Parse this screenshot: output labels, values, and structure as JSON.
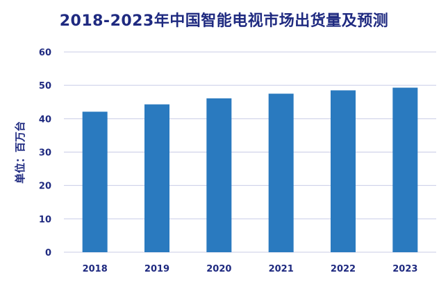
{
  "chart_data": {
    "type": "bar",
    "title": "2018-2023年中国智能电视市场出货量及预测",
    "ylabel": "单位：百万台",
    "xlabel": "",
    "categories": [
      "2018",
      "2019",
      "2020",
      "2021",
      "2022",
      "2023"
    ],
    "values": [
      42.1,
      44.3,
      46.1,
      47.5,
      48.5,
      49.3
    ],
    "ylim": [
      0,
      60
    ],
    "yticks": [
      0,
      10,
      20,
      30,
      40,
      50,
      60
    ],
    "grid": true,
    "legend": "none"
  },
  "colors": {
    "bar": "#2a7abf",
    "title": "#1f2a80",
    "axis_text": "#1f2a80",
    "ylabel": "#1f2a80",
    "grid": "#c8cbe6"
  }
}
